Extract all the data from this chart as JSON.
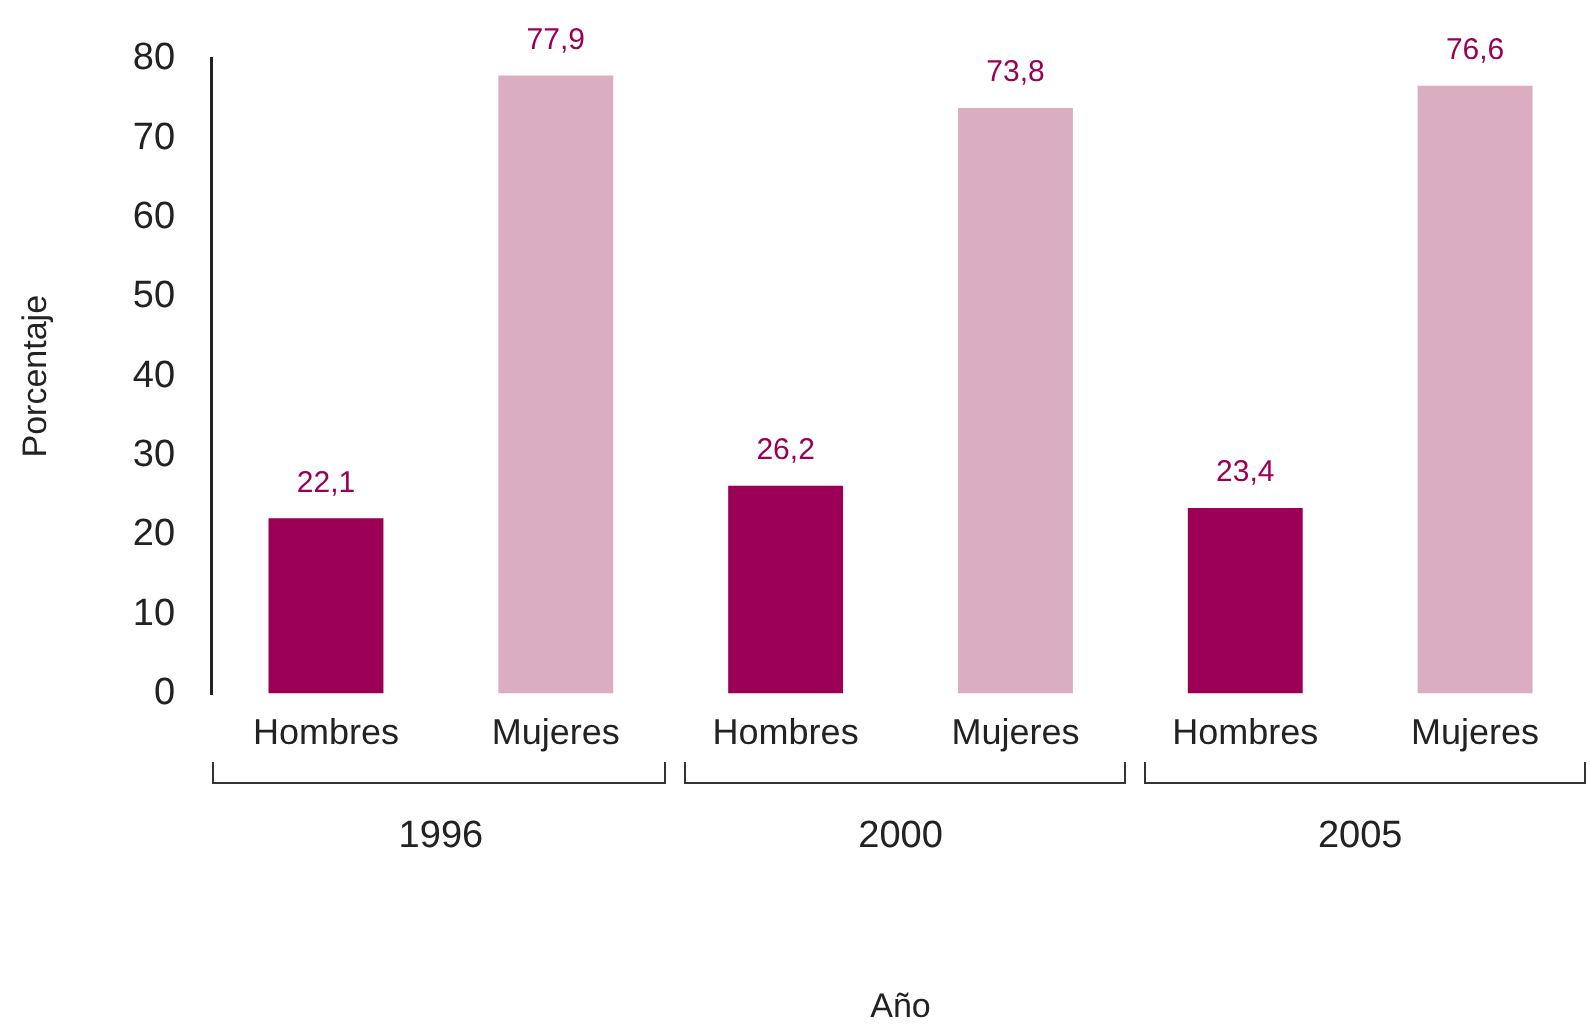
{
  "chart_data": {
    "type": "bar",
    "xlabel": "Año",
    "ylabel": "Porcentaje",
    "categories": [
      "1996",
      "2000",
      "2005"
    ],
    "series": [
      {
        "name": "Hombres",
        "color": "#9b0056",
        "values": [
          22.1,
          26.2,
          23.4
        ],
        "value_labels": [
          "22,1",
          "26,2",
          "23,4"
        ]
      },
      {
        "name": "Mujeres",
        "color": "#dbadc1",
        "values": [
          77.9,
          73.8,
          76.6
        ],
        "value_labels": [
          "77,9",
          "73,8",
          "76,6"
        ]
      }
    ],
    "ylim": [
      0,
      80
    ],
    "yticks": [
      0,
      10,
      20,
      30,
      40,
      50,
      60,
      70,
      80
    ]
  }
}
